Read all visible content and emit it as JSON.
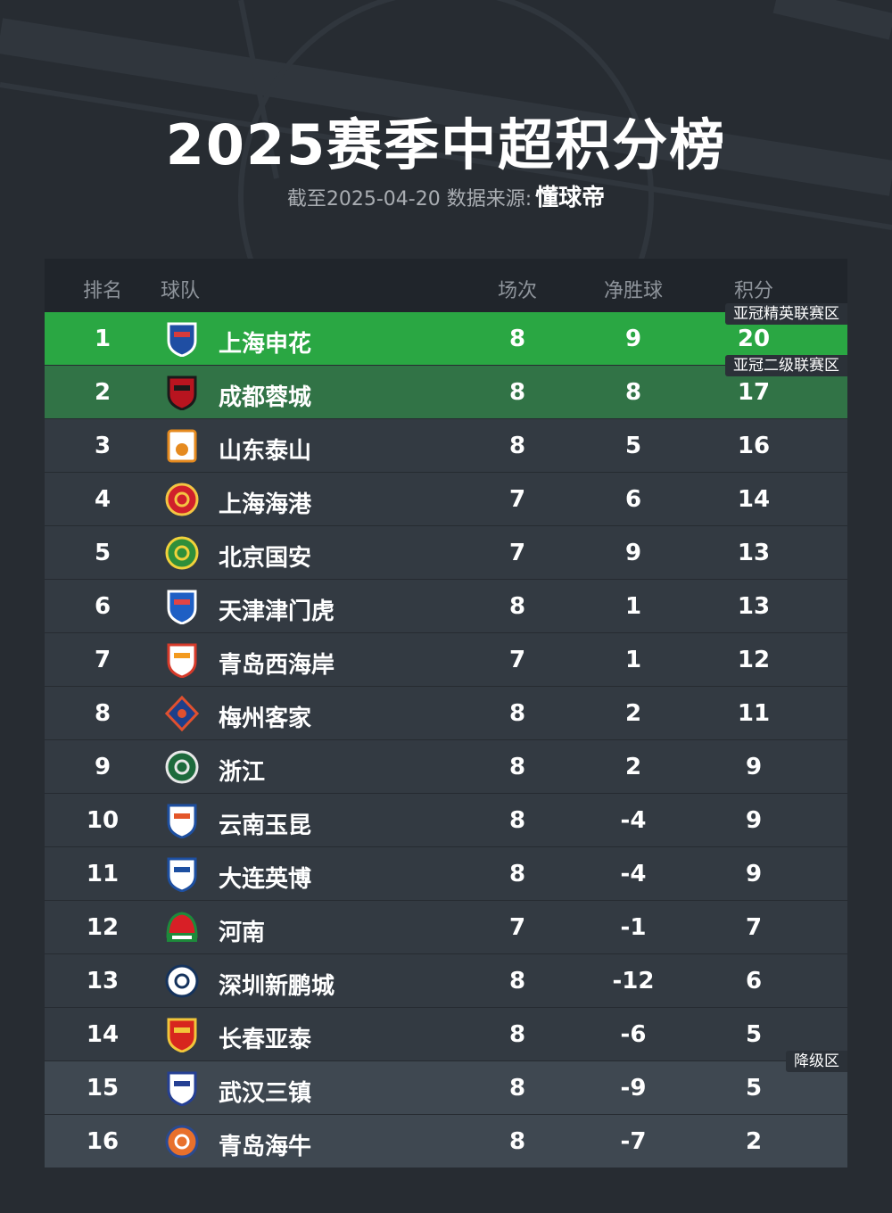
{
  "title": "2025赛季中超积分榜",
  "subtitle": "截至2025-04-20 数据来源:",
  "source_brand": "懂球帝",
  "headers": {
    "rank": "排名",
    "team": "球队",
    "played": "场次",
    "goal_diff": "净胜球",
    "points": "积分"
  },
  "zones": {
    "acl_elite": "亚冠精英联赛区",
    "acl_two": "亚冠二级联赛区",
    "relegation": "降级区"
  },
  "colors": {
    "background": "#272c32",
    "header_bg": "#20252b",
    "row_bg": "#333a42",
    "first_row": "#2aa743",
    "second_row": "#317346",
    "relegation_row": "#3f4851"
  },
  "rows": [
    {
      "rank": "1",
      "team": "上海申花",
      "played": "8",
      "goal_diff": "9",
      "points": "20",
      "logo": "shenhua-logo"
    },
    {
      "rank": "2",
      "team": "成都蓉城",
      "played": "8",
      "goal_diff": "8",
      "points": "17",
      "logo": "rongcheng-logo"
    },
    {
      "rank": "3",
      "team": "山东泰山",
      "played": "8",
      "goal_diff": "5",
      "points": "16",
      "logo": "taishan-logo"
    },
    {
      "rank": "4",
      "team": "上海海港",
      "played": "7",
      "goal_diff": "6",
      "points": "14",
      "logo": "haigang-logo"
    },
    {
      "rank": "5",
      "team": "北京国安",
      "played": "7",
      "goal_diff": "9",
      "points": "13",
      "logo": "guoan-logo"
    },
    {
      "rank": "6",
      "team": "天津津门虎",
      "played": "8",
      "goal_diff": "1",
      "points": "13",
      "logo": "jinmenhu-logo"
    },
    {
      "rank": "7",
      "team": "青岛西海岸",
      "played": "7",
      "goal_diff": "1",
      "points": "12",
      "logo": "xihaian-logo"
    },
    {
      "rank": "8",
      "team": "梅州客家",
      "played": "8",
      "goal_diff": "2",
      "points": "11",
      "logo": "kejia-logo"
    },
    {
      "rank": "9",
      "team": "浙江",
      "played": "8",
      "goal_diff": "2",
      "points": "9",
      "logo": "zhejiang-logo"
    },
    {
      "rank": "10",
      "team": "云南玉昆",
      "played": "8",
      "goal_diff": "-4",
      "points": "9",
      "logo": "yukun-logo"
    },
    {
      "rank": "11",
      "team": "大连英博",
      "played": "8",
      "goal_diff": "-4",
      "points": "9",
      "logo": "yingbo-logo"
    },
    {
      "rank": "12",
      "team": "河南",
      "played": "7",
      "goal_diff": "-1",
      "points": "7",
      "logo": "henan-logo"
    },
    {
      "rank": "13",
      "team": "深圳新鹏城",
      "played": "8",
      "goal_diff": "-12",
      "points": "6",
      "logo": "xinpengcheng-logo"
    },
    {
      "rank": "14",
      "team": "长春亚泰",
      "played": "8",
      "goal_diff": "-6",
      "points": "5",
      "logo": "yatai-logo"
    },
    {
      "rank": "15",
      "team": "武汉三镇",
      "played": "8",
      "goal_diff": "-9",
      "points": "5",
      "logo": "sanzhen-logo"
    },
    {
      "rank": "16",
      "team": "青岛海牛",
      "played": "8",
      "goal_diff": "-7",
      "points": "2",
      "logo": "hainiu-logo"
    }
  ]
}
